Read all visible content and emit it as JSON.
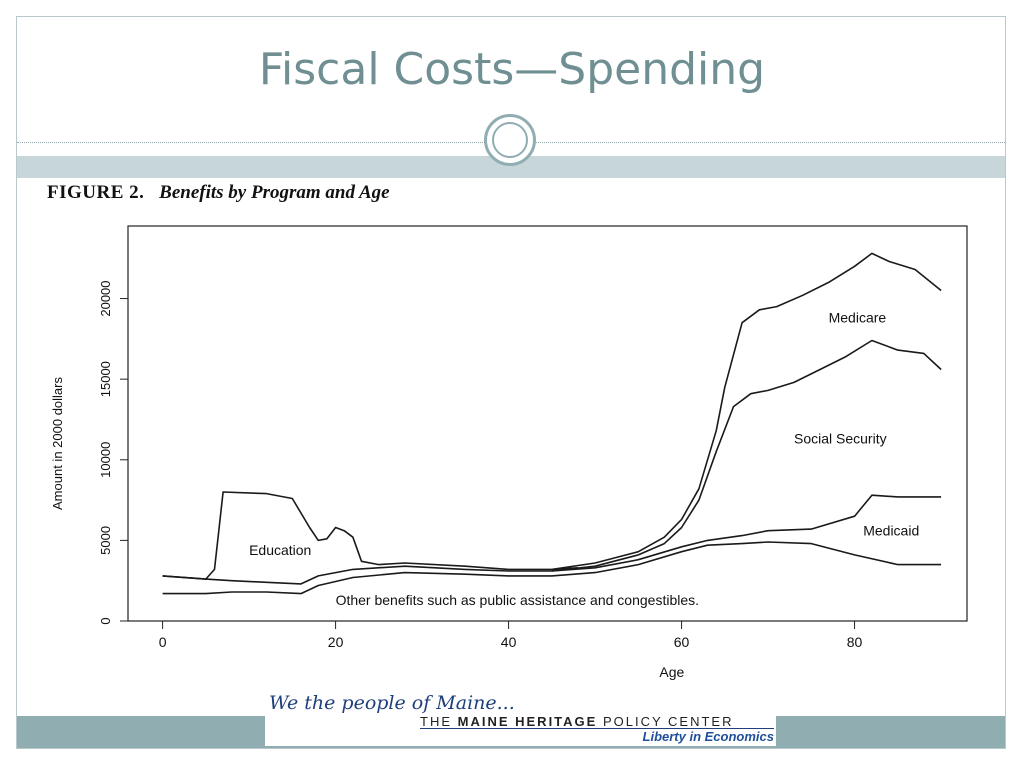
{
  "slide": {
    "title": "Fiscal Costs—Spending"
  },
  "figure": {
    "number": "FIGURE 2.",
    "caption": "Benefits by Program and Age"
  },
  "logo": {
    "script_text": "We the people of Maine...",
    "org_prefix": "THE ",
    "org_bold": "MAINE HERITAGE",
    "org_suffix": " POLICY CENTER",
    "tagline": "Liberty in Economics"
  },
  "chart_data": {
    "type": "area",
    "title": "",
    "xlabel": "Age",
    "ylabel": "Amount in 2000 dollars",
    "xlim": [
      -4,
      93
    ],
    "ylim": [
      0,
      24500
    ],
    "xticks": [
      0,
      20,
      40,
      60,
      80
    ],
    "xtick_labels": [
      "0",
      "20",
      "40",
      "60",
      "80"
    ],
    "yticks": [
      0,
      5000,
      10000,
      15000,
      20000
    ],
    "ytick_labels": [
      "0",
      "5000",
      "10000",
      "15000",
      "20000"
    ],
    "grid": false,
    "legend": "none",
    "series": [
      {
        "name": "Other benefits such as public assistance and congestibles.",
        "x": [
          0,
          5,
          8,
          12,
          16,
          18,
          22,
          28,
          35,
          40,
          45,
          50,
          55,
          60,
          63,
          67,
          70,
          75,
          80,
          85,
          90
        ],
        "values": [
          1700,
          1700,
          1800,
          1800,
          1700,
          2200,
          2700,
          3000,
          2900,
          2800,
          2800,
          3000,
          3500,
          4300,
          4700,
          4800,
          4900,
          4800,
          4100,
          3500,
          3500
        ]
      },
      {
        "name": "Medicaid",
        "x": [
          0,
          5,
          8,
          12,
          16,
          18,
          22,
          28,
          35,
          40,
          45,
          50,
          55,
          60,
          63,
          67,
          70,
          75,
          80,
          82,
          85,
          90
        ],
        "values": [
          2800,
          2600,
          2500,
          2400,
          2300,
          2800,
          3200,
          3400,
          3200,
          3100,
          3100,
          3300,
          3800,
          4600,
          5000,
          5300,
          5600,
          5700,
          6500,
          7800,
          7700,
          7700
        ]
      },
      {
        "name": "Education",
        "x": [
          0,
          5,
          6,
          7,
          12,
          15,
          17,
          18,
          19,
          20,
          21,
          22,
          23,
          25,
          28,
          35,
          40,
          45,
          48
        ],
        "values": [
          2800,
          2600,
          3200,
          8000,
          7900,
          7600,
          5800,
          5000,
          5100,
          5800,
          5600,
          5200,
          3700,
          3500,
          3600,
          3400,
          3200,
          3200,
          3300
        ]
      },
      {
        "name": "Social Security",
        "x": [
          45,
          50,
          55,
          58,
          60,
          62,
          64,
          66,
          68,
          70,
          73,
          76,
          79,
          82,
          85,
          88,
          90
        ],
        "values": [
          3100,
          3400,
          4100,
          4800,
          5800,
          7500,
          10500,
          13300,
          14100,
          14300,
          14800,
          15600,
          16400,
          17400,
          16800,
          16600,
          15600
        ]
      },
      {
        "name": "Medicare",
        "x": [
          45,
          50,
          55,
          58,
          60,
          62,
          64,
          65,
          67,
          69,
          71,
          74,
          77,
          80,
          82,
          84,
          87,
          90
        ],
        "values": [
          3200,
          3600,
          4300,
          5200,
          6300,
          8200,
          11800,
          14500,
          18500,
          19300,
          19500,
          20200,
          21000,
          22000,
          22800,
          22300,
          21800,
          20500
        ]
      }
    ],
    "annotations": [
      "Medicare",
      "Social Security",
      "Medicaid",
      "Education",
      "Other benefits such as public assistance and congestibles."
    ]
  }
}
